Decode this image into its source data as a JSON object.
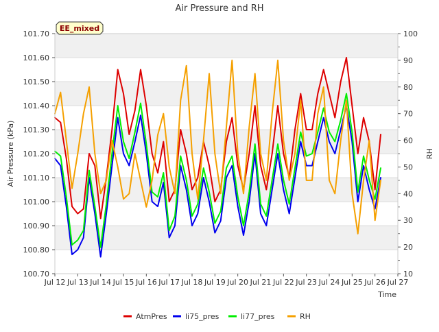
{
  "chart_data": {
    "type": "line",
    "title": "Air Pressure and RH",
    "xlabel": "Time",
    "ylabel": "Air Pressure (kPa)",
    "y2label": "RH",
    "site_label": "EE_mixed",
    "xlim": [
      12,
      27
    ],
    "ylim": [
      100.7,
      101.7
    ],
    "y2lim": [
      10,
      100
    ],
    "x_ticks": [
      12,
      13,
      14,
      15,
      16,
      17,
      18,
      19,
      20,
      21,
      22,
      23,
      24,
      25,
      26,
      27
    ],
    "x_tick_labels": [
      "Jul 12",
      "Jul 13",
      "Jul 14",
      "Jul 15",
      "Jul 16",
      "Jul 17",
      "Jul 18",
      "Jul 19",
      "Jul 20",
      "Jul 21",
      "Jul 22",
      "Jul 23",
      "Jul 24",
      "Jul 25",
      "Jul 26",
      "Jul 27"
    ],
    "y_ticks": [
      100.7,
      100.8,
      100.9,
      101.0,
      101.1,
      101.2,
      101.3,
      101.4,
      101.5,
      101.6,
      101.7
    ],
    "y_tick_labels": [
      "100.70",
      "100.80",
      "100.90",
      "101.00",
      "101.10",
      "101.20",
      "101.30",
      "101.40",
      "101.50",
      "101.60",
      "101.70"
    ],
    "y2_ticks": [
      10,
      20,
      30,
      40,
      50,
      60,
      70,
      80,
      90,
      100
    ],
    "y2_tick_labels": [
      "10",
      "20",
      "30",
      "40",
      "50",
      "60",
      "70",
      "80",
      "90",
      "100"
    ],
    "grid": "horizontal",
    "legend_position": "bottom-center",
    "series": [
      {
        "name": "AtmPres",
        "color": "#dd0000",
        "axis": "left",
        "x": [
          12.0,
          12.25,
          12.5,
          12.75,
          13.0,
          13.25,
          13.5,
          13.75,
          14.0,
          14.25,
          14.5,
          14.75,
          15.0,
          15.25,
          15.5,
          15.75,
          16.0,
          16.25,
          16.5,
          16.75,
          17.0,
          17.25,
          17.5,
          17.75,
          18.0,
          18.25,
          18.5,
          18.75,
          19.0,
          19.25,
          19.5,
          19.75,
          20.0,
          20.25,
          20.5,
          20.75,
          21.0,
          21.25,
          21.5,
          21.75,
          22.0,
          22.25,
          22.5,
          22.75,
          23.0,
          23.25,
          23.5,
          23.75,
          24.0,
          24.25,
          24.5,
          24.75,
          25.0,
          25.25,
          25.5,
          25.75,
          26.0,
          26.25
        ],
        "values": [
          101.35,
          101.33,
          101.18,
          100.98,
          100.95,
          100.97,
          101.2,
          101.15,
          100.93,
          101.1,
          101.3,
          101.55,
          101.45,
          101.28,
          101.38,
          101.55,
          101.4,
          101.2,
          101.12,
          101.25,
          101.0,
          101.05,
          101.3,
          101.2,
          101.05,
          101.1,
          101.25,
          101.15,
          101.0,
          101.05,
          101.25,
          101.35,
          101.15,
          101.05,
          101.2,
          101.4,
          101.15,
          101.05,
          101.2,
          101.4,
          101.2,
          101.1,
          101.3,
          101.45,
          101.3,
          101.3,
          101.45,
          101.55,
          101.45,
          101.35,
          101.5,
          101.6,
          101.4,
          101.2,
          101.35,
          101.25,
          101.05,
          101.28
        ]
      },
      {
        "name": "li75_pres",
        "color": "#0000ee",
        "axis": "left",
        "x": [
          12.0,
          12.25,
          12.5,
          12.75,
          13.0,
          13.25,
          13.5,
          13.75,
          14.0,
          14.25,
          14.5,
          14.75,
          15.0,
          15.25,
          15.5,
          15.75,
          16.0,
          16.25,
          16.5,
          16.75,
          17.0,
          17.25,
          17.5,
          17.75,
          18.0,
          18.25,
          18.5,
          18.75,
          19.0,
          19.25,
          19.5,
          19.75,
          20.0,
          20.25,
          20.5,
          20.75,
          21.0,
          21.25,
          21.5,
          21.75,
          22.0,
          22.25,
          22.5,
          22.75,
          23.0,
          23.25,
          23.5,
          23.75,
          24.0,
          24.25,
          24.5,
          24.75,
          25.0,
          25.25,
          25.5,
          25.75,
          26.0,
          26.25
        ],
        "values": [
          101.18,
          101.15,
          100.98,
          100.78,
          100.8,
          100.85,
          101.1,
          100.95,
          100.77,
          100.95,
          101.15,
          101.35,
          101.2,
          101.15,
          101.25,
          101.36,
          101.2,
          101.0,
          100.98,
          101.08,
          100.85,
          100.9,
          101.15,
          101.05,
          100.9,
          100.95,
          101.1,
          101.0,
          100.87,
          100.92,
          101.1,
          101.15,
          100.98,
          100.86,
          101.0,
          101.2,
          100.95,
          100.9,
          101.05,
          101.2,
          101.05,
          100.95,
          101.1,
          101.25,
          101.15,
          101.15,
          101.25,
          101.35,
          101.25,
          101.2,
          101.3,
          101.4,
          101.25,
          101.0,
          101.15,
          101.05,
          100.97,
          101.1
        ]
      },
      {
        "name": "li77_pres",
        "color": "#00ee00",
        "axis": "left",
        "x": [
          12.0,
          12.25,
          12.5,
          12.75,
          13.0,
          13.25,
          13.5,
          13.75,
          14.0,
          14.25,
          14.5,
          14.75,
          15.0,
          15.25,
          15.5,
          15.75,
          16.0,
          16.25,
          16.5,
          16.75,
          17.0,
          17.25,
          17.5,
          17.75,
          18.0,
          18.25,
          18.5,
          18.75,
          19.0,
          19.25,
          19.5,
          19.75,
          20.0,
          20.25,
          20.5,
          20.75,
          21.0,
          21.25,
          21.5,
          21.75,
          22.0,
          22.25,
          22.5,
          22.75,
          23.0,
          23.25,
          23.5,
          23.75,
          24.0,
          24.25,
          24.5,
          24.75,
          25.0,
          25.25,
          25.5,
          25.75,
          26.0,
          26.25
        ],
        "values": [
          101.21,
          101.19,
          101.02,
          100.82,
          100.84,
          100.88,
          101.13,
          100.98,
          100.81,
          100.99,
          101.2,
          101.4,
          101.25,
          101.18,
          101.29,
          101.41,
          101.24,
          101.04,
          101.02,
          101.12,
          100.88,
          100.94,
          101.19,
          101.09,
          100.94,
          100.99,
          101.14,
          101.04,
          100.91,
          100.96,
          101.14,
          101.19,
          101.02,
          100.9,
          101.04,
          101.24,
          100.99,
          100.94,
          101.09,
          101.24,
          101.09,
          100.99,
          101.14,
          101.29,
          101.19,
          101.2,
          101.29,
          101.39,
          101.29,
          101.25,
          101.34,
          101.45,
          101.29,
          101.04,
          101.19,
          101.09,
          101.01,
          101.14
        ]
      },
      {
        "name": "RH",
        "color": "#f5a000",
        "axis": "right",
        "x": [
          12.0,
          12.25,
          12.5,
          12.75,
          13.0,
          13.25,
          13.5,
          13.75,
          14.0,
          14.25,
          14.5,
          14.75,
          15.0,
          15.25,
          15.5,
          15.75,
          16.0,
          16.25,
          16.5,
          16.75,
          17.0,
          17.25,
          17.5,
          17.75,
          18.0,
          18.25,
          18.5,
          18.75,
          19.0,
          19.25,
          19.5,
          19.75,
          20.0,
          20.25,
          20.5,
          20.75,
          21.0,
          21.25,
          21.5,
          21.75,
          22.0,
          22.25,
          22.5,
          22.75,
          23.0,
          23.25,
          23.5,
          23.75,
          24.0,
          24.25,
          24.5,
          24.75,
          25.0,
          25.25,
          25.5,
          25.75,
          26.0,
          26.25
        ],
        "values": [
          70,
          78,
          60,
          42,
          55,
          70,
          80,
          55,
          40,
          45,
          60,
          50,
          38,
          40,
          55,
          45,
          35,
          45,
          62,
          70,
          50,
          40,
          75,
          88,
          55,
          38,
          60,
          85,
          55,
          40,
          65,
          90,
          55,
          40,
          65,
          85,
          55,
          45,
          70,
          90,
          60,
          45,
          55,
          75,
          45,
          45,
          70,
          80,
          45,
          40,
          60,
          75,
          40,
          25,
          45,
          60,
          30,
          45
        ]
      }
    ]
  }
}
